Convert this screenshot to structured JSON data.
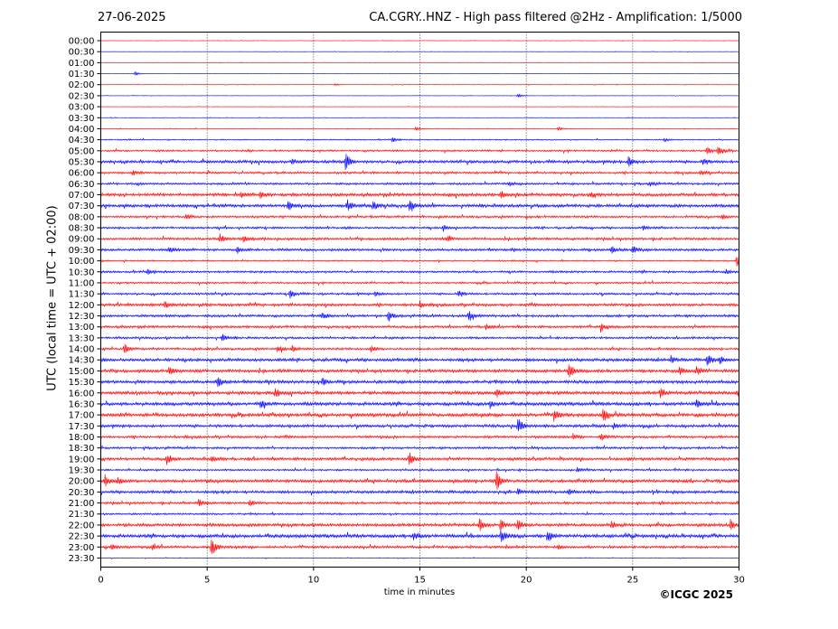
{
  "header": {
    "date": "27-06-2025",
    "title": "CA.CGRY..HNZ - High pass filtered @2Hz - Amplification: 1/5000"
  },
  "footer": {
    "copyright": "©ICGC 2025"
  },
  "chart_data": {
    "type": "line",
    "title": "CA.CGRY..HNZ - High pass filtered @2Hz - Amplification: 1/5000",
    "xlabel": "time in minutes",
    "ylabel": "UTC (local time = UTC + 02:00)",
    "xlim": [
      0,
      30
    ],
    "xticks": [
      0,
      5,
      10,
      15,
      20,
      25,
      30
    ],
    "grid": {
      "vertical_minutes": [
        5,
        10,
        15,
        20,
        25
      ],
      "style": "dotted"
    },
    "series_colors": [
      "#ff0000",
      "#0000ff"
    ],
    "rows": [
      "00:00",
      "00:30",
      "01:00",
      "01:30",
      "02:00",
      "02:30",
      "03:00",
      "03:30",
      "04:00",
      "04:30",
      "05:00",
      "05:30",
      "06:00",
      "06:30",
      "07:00",
      "07:30",
      "08:00",
      "08:30",
      "09:00",
      "09:30",
      "10:00",
      "10:30",
      "11:00",
      "11:30",
      "12:00",
      "12:30",
      "13:00",
      "13:30",
      "14:00",
      "14:30",
      "15:00",
      "15:30",
      "16:00",
      "16:30",
      "17:00",
      "17:30",
      "18:00",
      "18:30",
      "19:00",
      "19:30",
      "20:00",
      "20:30",
      "21:00",
      "21:30",
      "22:00",
      "22:30",
      "23:00",
      "23:30"
    ],
    "noise_level": [
      0.3,
      0.3,
      0.3,
      0.2,
      0.4,
      0.3,
      0.3,
      0.4,
      0.5,
      0.8,
      1.2,
      1.8,
      1.4,
      1.4,
      2.0,
      2.0,
      1.4,
      1.4,
      1.6,
      1.6,
      1.0,
      1.4,
      1.2,
      1.4,
      1.8,
      1.6,
      1.6,
      1.4,
      1.4,
      2.0,
      2.0,
      2.0,
      2.2,
      2.2,
      2.2,
      1.8,
      1.6,
      1.4,
      1.8,
      1.2,
      2.0,
      1.8,
      1.6,
      1.2,
      2.0,
      2.2,
      1.6,
      0.5
    ],
    "events": [
      {
        "row": "01:30",
        "t": 1.6,
        "amp": 2
      },
      {
        "row": "02:00",
        "t": 11.0,
        "amp": 1
      },
      {
        "row": "02:30",
        "t": 19.6,
        "amp": 2
      },
      {
        "row": "04:00",
        "t": 14.8,
        "amp": 2
      },
      {
        "row": "04:00",
        "t": 21.5,
        "amp": 2
      },
      {
        "row": "04:30",
        "t": 13.7,
        "amp": 3
      },
      {
        "row": "04:30",
        "t": 26.5,
        "amp": 2
      },
      {
        "row": "05:00",
        "t": 28.5,
        "amp": 4
      },
      {
        "row": "05:00",
        "t": 29.0,
        "amp": 5
      },
      {
        "row": "05:30",
        "t": 11.5,
        "amp": 9
      },
      {
        "row": "05:30",
        "t": 9.0,
        "amp": 3
      },
      {
        "row": "05:30",
        "t": 24.8,
        "amp": 6
      },
      {
        "row": "05:30",
        "t": 28.3,
        "amp": 4
      },
      {
        "row": "06:00",
        "t": 1.5,
        "amp": 3
      },
      {
        "row": "06:00",
        "t": 28.2,
        "amp": 3
      },
      {
        "row": "06:30",
        "t": 19.2,
        "amp": 3
      },
      {
        "row": "06:30",
        "t": 25.8,
        "amp": 3
      },
      {
        "row": "07:00",
        "t": 6.6,
        "amp": 3
      },
      {
        "row": "07:00",
        "t": 7.5,
        "amp": 4
      },
      {
        "row": "07:00",
        "t": 18.8,
        "amp": 4
      },
      {
        "row": "07:00",
        "t": 23.0,
        "amp": 3
      },
      {
        "row": "07:30",
        "t": 8.8,
        "amp": 6
      },
      {
        "row": "07:30",
        "t": 11.6,
        "amp": 6
      },
      {
        "row": "07:30",
        "t": 12.8,
        "amp": 5
      },
      {
        "row": "07:30",
        "t": 14.5,
        "amp": 6
      },
      {
        "row": "08:00",
        "t": 4.0,
        "amp": 3
      },
      {
        "row": "08:00",
        "t": 29.2,
        "amp": 3
      },
      {
        "row": "08:30",
        "t": 16.1,
        "amp": 3
      },
      {
        "row": "08:30",
        "t": 25.5,
        "amp": 2
      },
      {
        "row": "09:00",
        "t": 5.6,
        "amp": 5
      },
      {
        "row": "09:00",
        "t": 6.7,
        "amp": 4
      },
      {
        "row": "09:00",
        "t": 16.3,
        "amp": 4
      },
      {
        "row": "09:30",
        "t": 3.2,
        "amp": 4
      },
      {
        "row": "09:30",
        "t": 6.4,
        "amp": 4
      },
      {
        "row": "09:30",
        "t": 24.0,
        "amp": 5
      },
      {
        "row": "09:30",
        "t": 25.0,
        "amp": 4
      },
      {
        "row": "10:00",
        "t": 29.9,
        "amp": 7
      },
      {
        "row": "10:30",
        "t": 2.2,
        "amp": 3
      },
      {
        "row": "10:30",
        "t": 29.4,
        "amp": 2
      },
      {
        "row": "11:30",
        "t": 8.9,
        "amp": 5
      },
      {
        "row": "11:30",
        "t": 12.9,
        "amp": 3
      },
      {
        "row": "11:30",
        "t": 16.8,
        "amp": 4
      },
      {
        "row": "12:00",
        "t": 3.0,
        "amp": 4
      },
      {
        "row": "12:00",
        "t": 15.0,
        "amp": 3
      },
      {
        "row": "12:30",
        "t": 10.4,
        "amp": 4
      },
      {
        "row": "12:30",
        "t": 13.5,
        "amp": 5
      },
      {
        "row": "12:30",
        "t": 17.3,
        "amp": 6
      },
      {
        "row": "13:00",
        "t": 18.1,
        "amp": 3
      },
      {
        "row": "13:00",
        "t": 23.5,
        "amp": 5
      },
      {
        "row": "13:30",
        "t": 5.7,
        "amp": 4
      },
      {
        "row": "14:00",
        "t": 1.1,
        "amp": 5
      },
      {
        "row": "14:00",
        "t": 8.3,
        "amp": 4
      },
      {
        "row": "14:00",
        "t": 9.0,
        "amp": 3
      },
      {
        "row": "14:00",
        "t": 12.7,
        "amp": 4
      },
      {
        "row": "14:30",
        "t": 26.8,
        "amp": 4
      },
      {
        "row": "14:30",
        "t": 28.5,
        "amp": 6
      },
      {
        "row": "14:30",
        "t": 29.1,
        "amp": 4
      },
      {
        "row": "15:00",
        "t": 3.2,
        "amp": 5
      },
      {
        "row": "15:00",
        "t": 22.0,
        "amp": 9
      },
      {
        "row": "15:00",
        "t": 27.2,
        "amp": 4
      },
      {
        "row": "15:00",
        "t": 28.0,
        "amp": 5
      },
      {
        "row": "15:30",
        "t": 5.5,
        "amp": 6
      },
      {
        "row": "15:30",
        "t": 10.4,
        "amp": 4
      },
      {
        "row": "16:00",
        "t": 8.2,
        "amp": 4
      },
      {
        "row": "16:00",
        "t": 18.6,
        "amp": 4
      },
      {
        "row": "16:00",
        "t": 26.3,
        "amp": 5
      },
      {
        "row": "16:00",
        "t": 29.9,
        "amp": 4
      },
      {
        "row": "16:30",
        "t": 7.5,
        "amp": 4
      },
      {
        "row": "16:30",
        "t": 18.3,
        "amp": 4
      },
      {
        "row": "16:30",
        "t": 28.0,
        "amp": 4
      },
      {
        "row": "17:00",
        "t": 21.3,
        "amp": 6
      },
      {
        "row": "17:00",
        "t": 23.6,
        "amp": 8
      },
      {
        "row": "17:30",
        "t": 19.6,
        "amp": 9
      },
      {
        "row": "17:30",
        "t": 24.1,
        "amp": 3
      },
      {
        "row": "18:00",
        "t": 22.2,
        "amp": 3
      },
      {
        "row": "18:00",
        "t": 23.5,
        "amp": 4
      },
      {
        "row": "19:00",
        "t": 3.1,
        "amp": 6
      },
      {
        "row": "19:00",
        "t": 14.5,
        "amp": 8
      },
      {
        "row": "19:00",
        "t": 5.2,
        "amp": 4
      },
      {
        "row": "19:30",
        "t": 22.4,
        "amp": 3
      },
      {
        "row": "20:00",
        "t": 0.2,
        "amp": 6
      },
      {
        "row": "20:00",
        "t": 0.8,
        "amp": 4
      },
      {
        "row": "20:00",
        "t": 18.6,
        "amp": 10
      },
      {
        "row": "20:30",
        "t": 19.6,
        "amp": 3
      },
      {
        "row": "20:30",
        "t": 22.0,
        "amp": 3
      },
      {
        "row": "21:00",
        "t": 4.6,
        "amp": 4
      },
      {
        "row": "21:00",
        "t": 7.0,
        "amp": 3
      },
      {
        "row": "22:00",
        "t": 17.8,
        "amp": 7
      },
      {
        "row": "22:00",
        "t": 18.8,
        "amp": 6
      },
      {
        "row": "22:00",
        "t": 19.6,
        "amp": 7
      },
      {
        "row": "22:00",
        "t": 24.0,
        "amp": 4
      },
      {
        "row": "22:00",
        "t": 29.6,
        "amp": 6
      },
      {
        "row": "22:30",
        "t": 14.7,
        "amp": 5
      },
      {
        "row": "22:30",
        "t": 18.8,
        "amp": 8
      },
      {
        "row": "22:30",
        "t": 21.0,
        "amp": 6
      },
      {
        "row": "23:00",
        "t": 5.2,
        "amp": 11
      },
      {
        "row": "23:00",
        "t": 0.5,
        "amp": 3
      },
      {
        "row": "23:00",
        "t": 2.4,
        "amp": 3
      },
      {
        "row": "23:00",
        "t": 21.5,
        "amp": 3
      }
    ]
  }
}
